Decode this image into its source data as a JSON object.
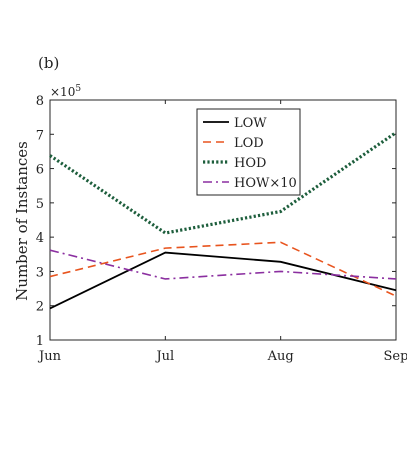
{
  "panel_label": "(b)",
  "chart_data": {
    "type": "line",
    "categories": [
      "Jun",
      "Jul",
      "Aug",
      "Sep"
    ],
    "ylabel": "Number of Instances",
    "y_multiplier_label": "×10",
    "y_multiplier_exponent": "5",
    "ylim": [
      1,
      8
    ],
    "yticks": [
      1,
      2,
      3,
      4,
      5,
      6,
      7,
      8
    ],
    "grid": false,
    "legend_position": "top-center",
    "series": [
      {
        "name": "LOW",
        "values": [
          1.92,
          3.55,
          3.28,
          2.45
        ],
        "color": "#000000",
        "dash": "solid"
      },
      {
        "name": "LOD",
        "values": [
          2.85,
          3.68,
          3.85,
          2.28
        ],
        "color": "#e8541e",
        "dash": "dashed"
      },
      {
        "name": "HOD",
        "values": [
          6.38,
          4.12,
          4.75,
          7.05
        ],
        "color": "#1d5e3c",
        "dash": "dotted"
      },
      {
        "name": "HOW×10",
        "values": [
          3.62,
          2.78,
          3.0,
          2.78
        ],
        "color": "#8b2fa0",
        "dash": "dashdot"
      }
    ]
  }
}
